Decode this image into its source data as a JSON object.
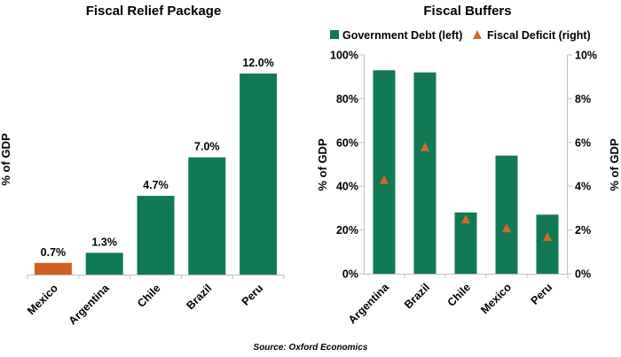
{
  "colors": {
    "bar_green": "#117a55",
    "bar_orange": "#d0601f",
    "marker_orange": "#d26a27",
    "axis": "#bfbfbf",
    "text": "#000000"
  },
  "source": "Source: Oxford Economics",
  "chart_data": [
    {
      "type": "bar",
      "title": "Fiscal Relief Package",
      "ylabel": "% of GDP",
      "xlabel": "",
      "categories": [
        "Mexico",
        "Argentina",
        "Chile",
        "Brazil",
        "Peru"
      ],
      "values": [
        0.7,
        1.3,
        4.7,
        7.0,
        12.0
      ],
      "value_labels": [
        "0.7%",
        "1.3%",
        "4.7%",
        "7.0%",
        "12.0%"
      ],
      "bar_colors": [
        "#d0601f",
        "#117a55",
        "#117a55",
        "#117a55",
        "#117a55"
      ],
      "ylim": [
        0,
        12.9
      ],
      "y_axis_visible": false,
      "grid": false
    },
    {
      "type": "bar",
      "title": "Fiscal Buffers",
      "categories": [
        "Argentina",
        "Brazil",
        "Chile",
        "Mexico",
        "Peru"
      ],
      "legend": {
        "placement": "top",
        "entries": [
          "Government Debt (left)",
          "Fiscal Deficit (right)"
        ]
      },
      "ylabel_left": "% of GDP",
      "ylabel_right": "% of GDP",
      "y_left": {
        "ylim": [
          0,
          100
        ],
        "ticks": [
          0,
          20,
          40,
          60,
          80,
          100
        ],
        "tick_labels": [
          "0%",
          "20%",
          "40%",
          "60%",
          "80%",
          "100%"
        ]
      },
      "y_right": {
        "ylim": [
          0,
          10
        ],
        "ticks": [
          0,
          2,
          4,
          6,
          8,
          10
        ],
        "tick_labels": [
          "0%",
          "2%",
          "4%",
          "6%",
          "8%",
          "10%"
        ]
      },
      "series": [
        {
          "name": "Government Debt (left)",
          "kind": "bar",
          "axis": "left",
          "color": "#117a55",
          "values": [
            93,
            92,
            28,
            54,
            27
          ]
        },
        {
          "name": "Fiscal Deficit (right)",
          "kind": "triangle-marker",
          "axis": "right",
          "color": "#d26a27",
          "values": [
            4.3,
            5.8,
            2.5,
            2.1,
            1.7
          ]
        }
      ],
      "grid": false
    }
  ]
}
